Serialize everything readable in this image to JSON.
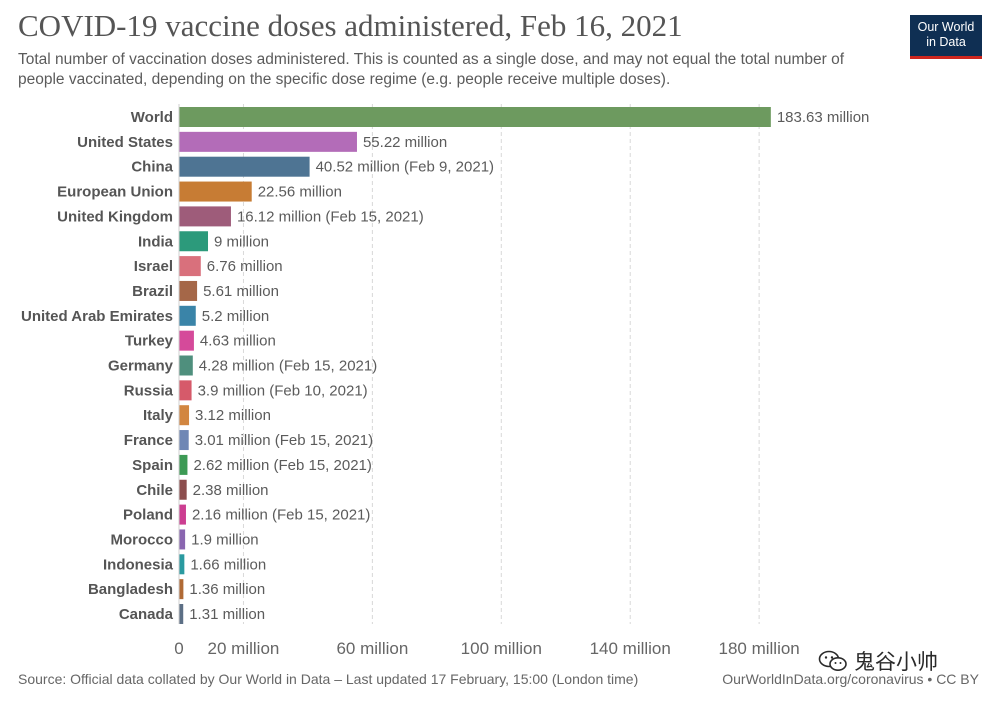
{
  "title": "COVID-19 vaccine doses administered, Feb 16, 2021",
  "subtitle": "Total number of vaccination doses administered. This is counted as a single dose, and may not equal the total number of people vaccinated, depending on the specific dose regime (e.g. people receive multiple doses).",
  "logo": {
    "line1": "Our World",
    "line2": "in Data"
  },
  "footer": {
    "source": "Source: Official data collated by Our World in Data – Last updated 17 February, 15:00 (London time)",
    "credit": "OurWorldInData.org/coronavirus • CC BY"
  },
  "watermark": {
    "text": "鬼谷小帅",
    "icon": "wechat-icon"
  },
  "chart_data": {
    "type": "bar",
    "orientation": "horizontal",
    "title": "COVID-19 vaccine doses administered, Feb 16, 2021",
    "xlabel": "",
    "ylabel": "",
    "xlim": [
      0,
      190
    ],
    "grid": true,
    "ticks": [
      {
        "value": 0,
        "label": "0"
      },
      {
        "value": 20,
        "label": "20 million"
      },
      {
        "value": 60,
        "label": "60 million"
      },
      {
        "value": 100,
        "label": "100 million"
      },
      {
        "value": 140,
        "label": "140 million"
      },
      {
        "value": 180,
        "label": "180 million"
      }
    ],
    "categories": [
      "World",
      "United States",
      "China",
      "European Union",
      "United Kingdom",
      "India",
      "Israel",
      "Brazil",
      "United Arab Emirates",
      "Turkey",
      "Germany",
      "Russia",
      "Italy",
      "France",
      "Spain",
      "Chile",
      "Poland",
      "Morocco",
      "Indonesia",
      "Bangladesh",
      "Canada"
    ],
    "values": [
      183.63,
      55.22,
      40.52,
      22.56,
      16.12,
      9,
      6.76,
      5.61,
      5.2,
      4.63,
      4.28,
      3.9,
      3.12,
      3.01,
      2.62,
      2.38,
      2.16,
      1.9,
      1.66,
      1.36,
      1.31
    ],
    "labels": [
      "183.63 million",
      "55.22 million",
      "40.52 million (Feb 9, 2021)",
      "22.56 million",
      "16.12 million (Feb 15, 2021)",
      "9 million",
      "6.76 million",
      "5.61 million",
      "5.2 million",
      "4.63 million",
      "4.28 million (Feb 15, 2021)",
      "3.9 million (Feb 10, 2021)",
      "3.12 million",
      "3.01 million (Feb 15, 2021)",
      "2.62 million (Feb 15, 2021)",
      "2.38 million",
      "2.16 million (Feb 15, 2021)",
      "1.9 million",
      "1.66 million",
      "1.36 million",
      "1.31 million"
    ],
    "colors": [
      "#6d9a5f",
      "#b36cb8",
      "#4e7493",
      "#c77c34",
      "#9e5c7a",
      "#2c9a7b",
      "#d9707c",
      "#a56748",
      "#3a84a8",
      "#d54a9a",
      "#4f8f7d",
      "#d65a6a",
      "#d28640",
      "#6f87b5",
      "#3d9a55",
      "#8c4e4e",
      "#cc3e91",
      "#8a66b0",
      "#2a9aa0",
      "#b06a35",
      "#5c6f85"
    ]
  }
}
